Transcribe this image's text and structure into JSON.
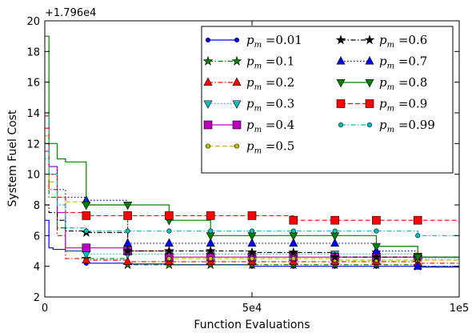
{
  "chart_data": {
    "type": "line",
    "title": "",
    "offset_text": "+1.796e4",
    "xlabel": "Function Evaluations",
    "ylabel": "System Fuel Cost",
    "xlim": [
      0,
      100000
    ],
    "ylim": [
      2,
      20
    ],
    "x_ticks": [
      0,
      50000,
      100000
    ],
    "x_tick_labels": [
      "0",
      "5e4",
      "1e5"
    ],
    "y_ticks": [
      2,
      4,
      6,
      8,
      10,
      12,
      14,
      16,
      18,
      20
    ],
    "y_tick_labels": [
      "2",
      "4",
      "6",
      "8",
      "10",
      "12",
      "14",
      "16",
      "18",
      "20"
    ],
    "grid": false,
    "legend_position": "top-right",
    "legend_columns": 2,
    "series": [
      {
        "name": "0.01",
        "legend": "p_m = 0.01",
        "color": "#0000ff",
        "marker": "circle",
        "dash": "solid",
        "x": [
          0,
          1000,
          2000,
          5000,
          10000,
          20000,
          30000,
          40000,
          50000,
          60000,
          70000,
          80000,
          90000,
          100000
        ],
        "y": [
          7.0,
          5.2,
          5.1,
          5.0,
          4.2,
          4.15,
          4.1,
          4.1,
          4.0,
          4.0,
          4.0,
          4.0,
          3.95,
          3.9
        ]
      },
      {
        "name": "0.1",
        "legend": "p_m = 0.1",
        "color": "#008000",
        "marker": "star",
        "dash": "dashdot",
        "x": [
          0,
          1000,
          3000,
          5000,
          10000,
          20000,
          30000,
          40000,
          50000,
          60000,
          70000,
          80000,
          90000,
          100000
        ],
        "y": [
          12.0,
          8.5,
          6.5,
          5.0,
          4.5,
          4.1,
          4.1,
          4.1,
          4.1,
          4.1,
          4.1,
          4.1,
          4.0,
          4.0
        ]
      },
      {
        "name": "0.2",
        "legend": "p_m = 0.2",
        "color": "#ff0000",
        "marker": "triangle-up",
        "dash": "dashdot",
        "x": [
          0,
          1000,
          3000,
          5000,
          10000,
          20000,
          30000,
          40000,
          50000,
          60000,
          70000,
          80000,
          90000,
          100000
        ],
        "y": [
          13.0,
          9.0,
          6.0,
          4.5,
          4.4,
          4.3,
          4.3,
          4.3,
          4.3,
          4.3,
          4.3,
          4.3,
          4.2,
          4.2
        ]
      },
      {
        "name": "0.3",
        "legend": "p_m = 0.3",
        "color": "#00bfbf",
        "marker": "triangle-down",
        "dash": "dotted",
        "x": [
          0,
          1000,
          3000,
          5000,
          10000,
          20000,
          30000,
          40000,
          50000,
          60000,
          70000,
          80000,
          90000,
          100000
        ],
        "y": [
          11.0,
          10.0,
          7.0,
          5.0,
          4.8,
          4.8,
          4.8,
          4.8,
          4.8,
          4.8,
          4.8,
          4.8,
          4.5,
          4.5
        ]
      },
      {
        "name": "0.4",
        "legend": "p_m = 0.4",
        "color": "#bf00bf",
        "marker": "square",
        "dash": "solid",
        "x": [
          0,
          1000,
          3000,
          5000,
          10000,
          20000,
          30000,
          40000,
          50000,
          60000,
          70000,
          80000,
          90000,
          100000
        ],
        "y": [
          11.5,
          10.5,
          7.5,
          5.2,
          5.2,
          5.0,
          4.6,
          4.6,
          4.6,
          4.6,
          4.6,
          4.6,
          4.6,
          4.6
        ]
      },
      {
        "name": "0.5",
        "legend": "p_m = 0.5",
        "color": "#bfbf00",
        "marker": "circle",
        "dash": "dashed",
        "x": [
          0,
          1000,
          3000,
          5000,
          10000,
          20000,
          30000,
          40000,
          50000,
          60000,
          70000,
          80000,
          90000,
          100000
        ],
        "y": [
          12.5,
          9.5,
          8.5,
          8.2,
          8.0,
          5.0,
          4.5,
          4.5,
          4.5,
          4.5,
          4.4,
          4.4,
          4.4,
          4.4
        ]
      },
      {
        "name": "0.6",
        "legend": "p_m = 0.6",
        "color": "#000000",
        "marker": "star",
        "dash": "dashdot",
        "x": [
          0,
          1000,
          3000,
          5000,
          10000,
          20000,
          30000,
          40000,
          50000,
          60000,
          70000,
          80000,
          90000,
          100000
        ],
        "y": [
          8.0,
          7.5,
          7.0,
          6.3,
          6.2,
          5.0,
          5.0,
          5.0,
          4.9,
          4.9,
          4.6,
          4.6,
          4.6,
          4.6
        ]
      },
      {
        "name": "0.7",
        "legend": "p_m = 0.7",
        "color": "#0000ff",
        "marker": "triangle-up",
        "dash": "dotted",
        "x": [
          0,
          1000,
          3000,
          5000,
          10000,
          20000,
          30000,
          40000,
          50000,
          60000,
          70000,
          80000,
          90000,
          100000
        ],
        "y": [
          12.0,
          10.5,
          9.0,
          8.5,
          8.3,
          5.5,
          5.5,
          5.5,
          5.5,
          5.5,
          5.5,
          5.0,
          4.0,
          4.0
        ]
      },
      {
        "name": "0.8",
        "legend": "p_m = 0.8",
        "color": "#008000",
        "marker": "triangle-down",
        "dash": "solid",
        "x": [
          0,
          1000,
          3000,
          5000,
          10000,
          20000,
          30000,
          40000,
          50000,
          60000,
          70000,
          80000,
          90000,
          100000
        ],
        "y": [
          19.0,
          12.0,
          11.0,
          10.8,
          8.0,
          8.0,
          7.0,
          6.0,
          6.0,
          6.0,
          6.0,
          5.3,
          4.6,
          4.6
        ]
      },
      {
        "name": "0.9",
        "legend": "p_m = 0.9",
        "color": "#ff0000",
        "marker": "square",
        "dash": "dashed",
        "x": [
          0,
          1000,
          3000,
          5000,
          10000,
          20000,
          30000,
          40000,
          50000,
          60000,
          70000,
          80000,
          90000,
          100000
        ],
        "y": [
          13.8,
          10.0,
          8.5,
          7.5,
          7.3,
          7.3,
          7.3,
          7.3,
          7.3,
          7.0,
          7.0,
          7.0,
          7.0,
          6.6
        ]
      },
      {
        "name": "0.99",
        "legend": "p_m = 0.99",
        "color": "#00bfbf",
        "marker": "circle",
        "dash": "dashdot",
        "x": [
          0,
          1000,
          3000,
          5000,
          10000,
          20000,
          30000,
          40000,
          50000,
          60000,
          70000,
          80000,
          90000,
          100000
        ],
        "y": [
          14.0,
          10.0,
          8.0,
          6.5,
          6.3,
          6.3,
          6.3,
          6.3,
          6.3,
          6.3,
          6.3,
          6.3,
          6.0,
          6.0
        ]
      }
    ]
  }
}
